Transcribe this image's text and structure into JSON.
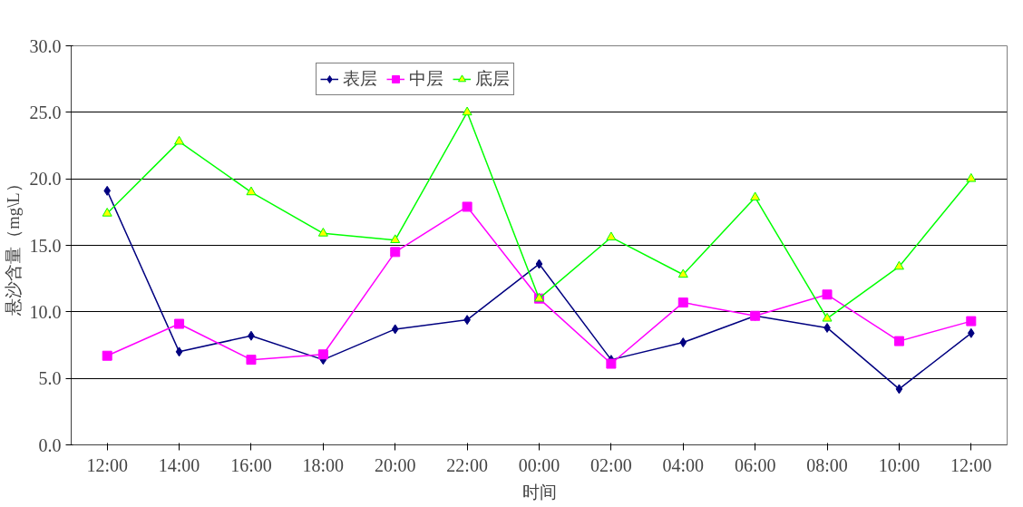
{
  "chart_data": {
    "type": "line",
    "xlabel": "时间",
    "ylabel": "悬沙含量（mg\\L）",
    "categories": [
      "12:00",
      "14:00",
      "16:00",
      "18:00",
      "20:00",
      "22:00",
      "00:00",
      "02:00",
      "04:00",
      "06:00",
      "08:00",
      "10:00",
      "12:00"
    ],
    "series": [
      {
        "name": "表层",
        "color": "#000080",
        "marker": "diamond",
        "values": [
          19.1,
          7.0,
          8.2,
          6.4,
          8.7,
          9.4,
          13.6,
          6.4,
          7.7,
          9.7,
          8.8,
          4.2,
          8.4
        ]
      },
      {
        "name": "中层",
        "color": "#ff00ff",
        "marker": "square",
        "values": [
          6.7,
          9.1,
          6.4,
          6.8,
          14.5,
          17.9,
          11.0,
          6.1,
          10.7,
          9.7,
          11.3,
          7.8,
          9.3
        ]
      },
      {
        "name": "底层",
        "color": "#00ff00",
        "marker": "triangle",
        "values": [
          17.4,
          22.8,
          19.0,
          15.9,
          15.4,
          25.0,
          11.0,
          15.6,
          12.8,
          18.6,
          9.5,
          13.4,
          20.0
        ]
      }
    ],
    "ylim": [
      0,
      30
    ],
    "yticks": [
      {
        "value": 0,
        "label": "0.0"
      },
      {
        "value": 5,
        "label": "5.0"
      },
      {
        "value": 10,
        "label": "10.0"
      },
      {
        "value": 15,
        "label": "15.0"
      },
      {
        "value": 20,
        "label": "20.0"
      },
      {
        "value": 25,
        "label": "25.0"
      },
      {
        "value": 30,
        "label": "30.0"
      }
    ],
    "grid": "y",
    "legend": "top",
    "line_style": "solid"
  }
}
